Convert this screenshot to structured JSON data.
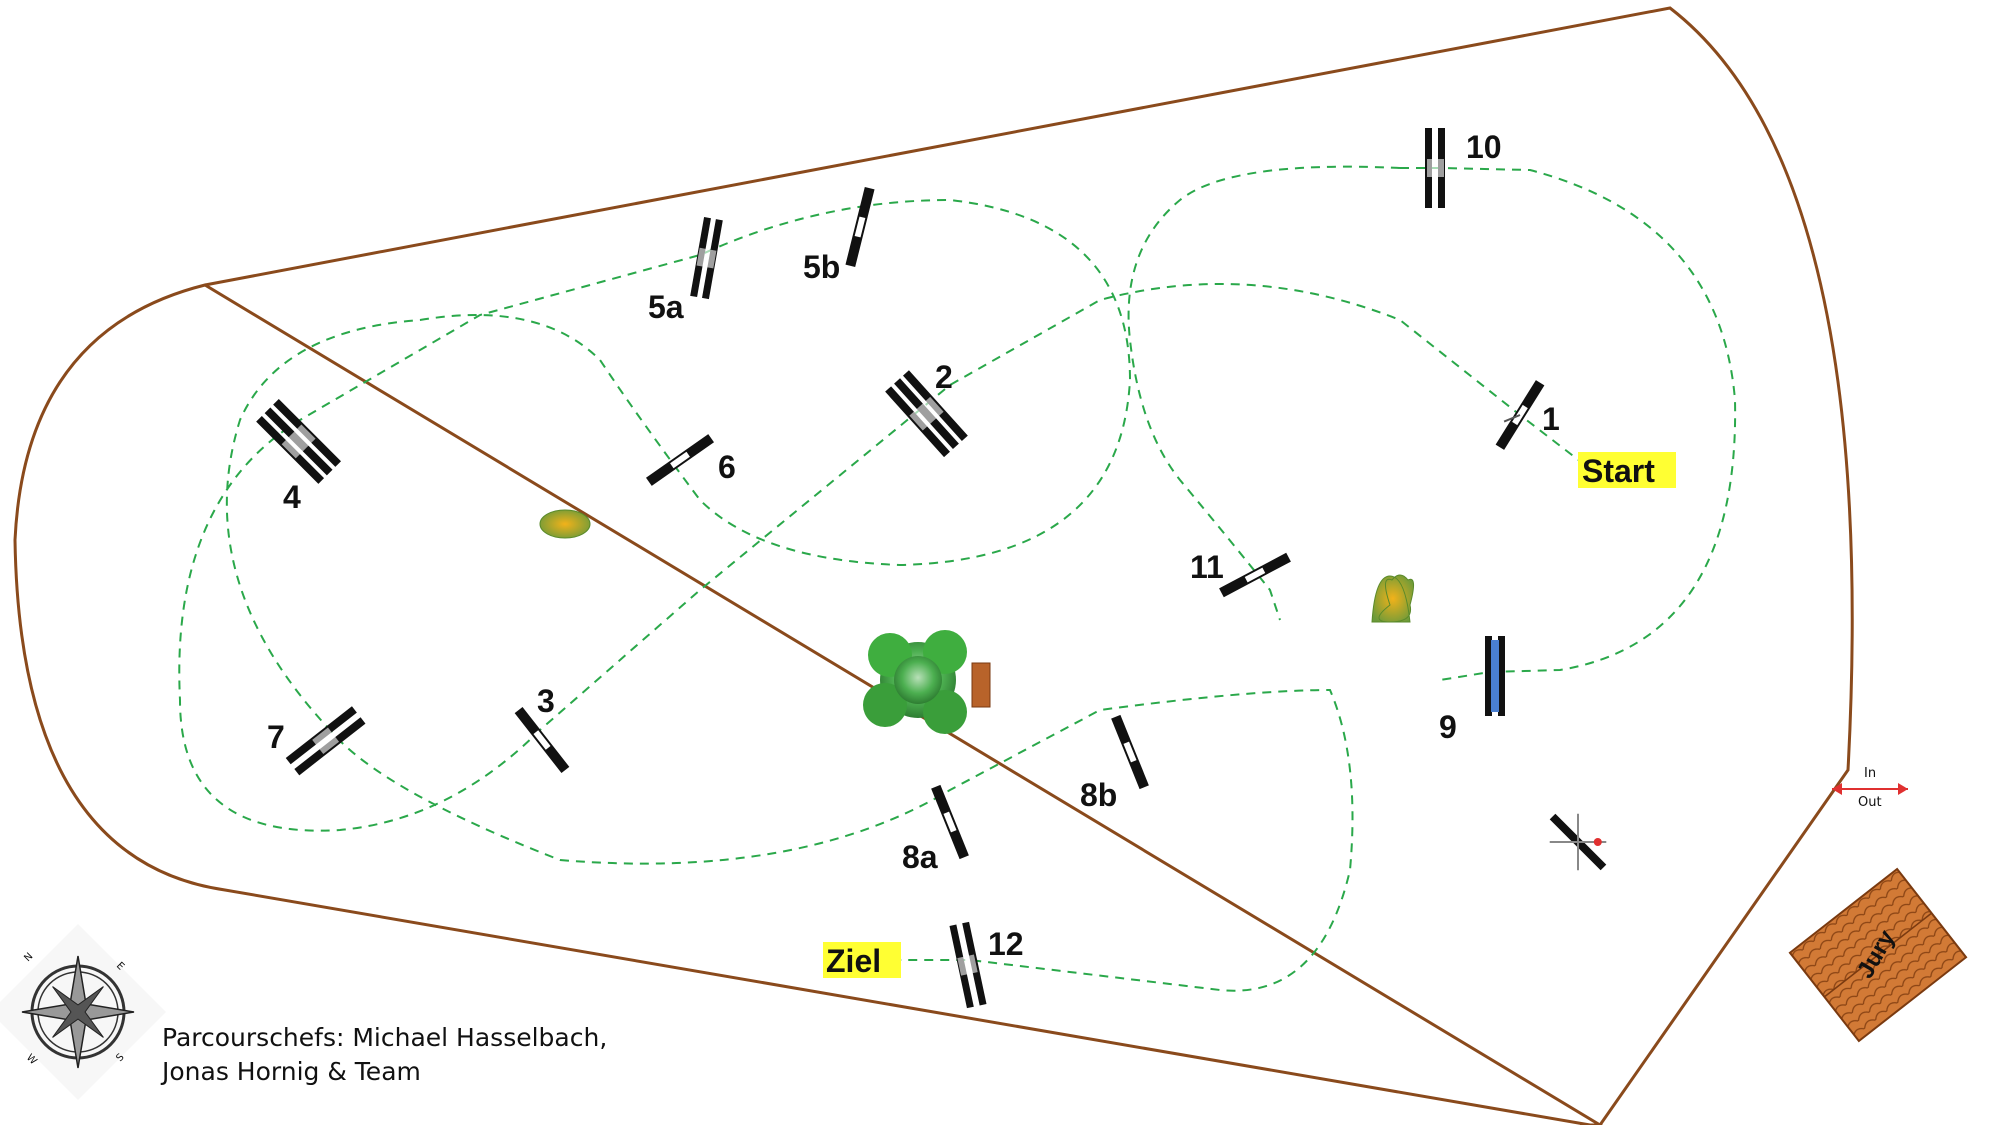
{
  "colors": {
    "arena_border": "#8a4a1c",
    "route": "#2aa84a",
    "highlight": "#ffff33",
    "jury_roof": "#c96a2a",
    "tree": "#3fae3f",
    "water_jump": "#4a7fd0",
    "gate_arrow": "#e03030"
  },
  "labels": {
    "start": "Start",
    "finish": "Ziel",
    "jury": "Jury",
    "gate_in": "In",
    "gate_out": "Out"
  },
  "obstacles": [
    "1",
    "2",
    "3",
    "4",
    "5a",
    "5b",
    "6",
    "7",
    "8a",
    "8b",
    "9",
    "10",
    "11",
    "12"
  ],
  "compass": {
    "letters": [
      "N",
      "E",
      "S",
      "W"
    ]
  },
  "credits": {
    "line1": "Parcourschefs: Michael Hasselbach,",
    "line2": "Jonas Hornig & Team"
  }
}
